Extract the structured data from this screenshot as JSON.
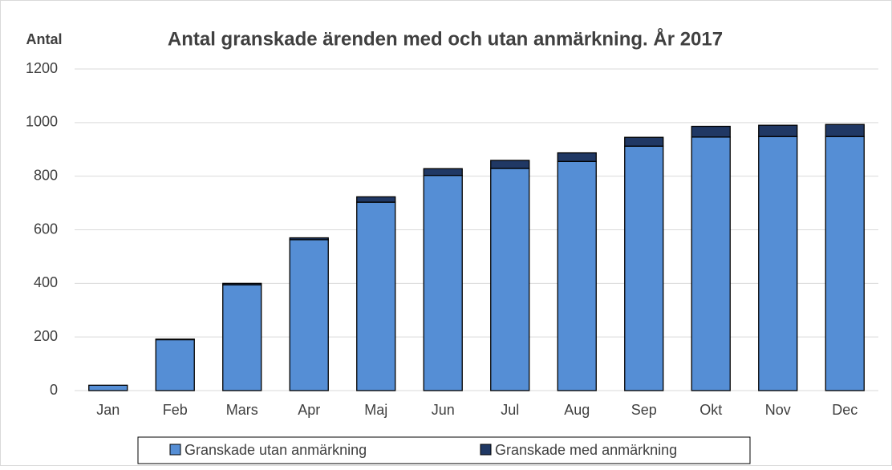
{
  "chart_data": {
    "type": "stacked_bar",
    "title": "Antal granskade ärenden med och utan anmärkning.  År 2017",
    "y_label": "Antal",
    "categories": [
      "Jan",
      "Feb",
      "Mars",
      "Apr",
      "Maj",
      "Jun",
      "Jul",
      "Aug",
      "Sep",
      "Okt",
      "Nov",
      "Dec"
    ],
    "series": [
      {
        "name": "Granskade utan anmärkning",
        "color": "#558ed5",
        "values": [
          20,
          190,
          395,
          563,
          703,
          803,
          829,
          855,
          912,
          946,
          948,
          948
        ]
      },
      {
        "name": "Granskade med anmärkning",
        "color": "#203864",
        "values": [
          0,
          2,
          5,
          7,
          20,
          25,
          30,
          32,
          33,
          40,
          42,
          45
        ]
      }
    ],
    "ylim": [
      0,
      1200
    ],
    "yticks": [
      0,
      200,
      400,
      600,
      800,
      1000,
      1200
    ],
    "grid": true,
    "legend": "bottom"
  }
}
